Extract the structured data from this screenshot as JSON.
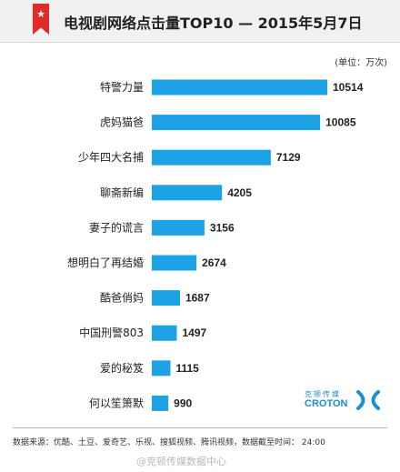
{
  "header": {
    "title": "电视剧网络点击量TOP10 — 2015年5月7日",
    "icon": "star-bookmark-icon",
    "icon_color": "#e02b2b"
  },
  "unit_label": "(单位：万次)",
  "chart_data": {
    "type": "bar",
    "orientation": "horizontal",
    "categories": [
      "特警力量",
      "虎妈猫爸",
      "少年四大名捕",
      "聊斋新编",
      "妻子的谎言",
      "想明白了再结婚",
      "酷爸俏妈",
      "中国刑警803",
      "爱的秘笈",
      "何以笙箫默"
    ],
    "values": [
      10514,
      10085,
      7129,
      4205,
      3156,
      2674,
      1687,
      1497,
      1115,
      990
    ],
    "title": "电视剧网络点击量TOP10 — 2015年5月7日",
    "unit": "万次",
    "xlim": [
      0,
      10514
    ],
    "bar_color": "#1da2e6",
    "grid": false,
    "legend": "none"
  },
  "logo": {
    "chinese": "克顿传媒",
    "english": "CROTON",
    "icon": "croton-logo-icon",
    "color": "#1b8ed1"
  },
  "footer": {
    "source": "数据来源：优酷、土豆、爱奇艺、乐视、搜狐视频、腾讯视频，数据截至时间： 24:00",
    "watermark": "@克顿传媒数据中心"
  }
}
